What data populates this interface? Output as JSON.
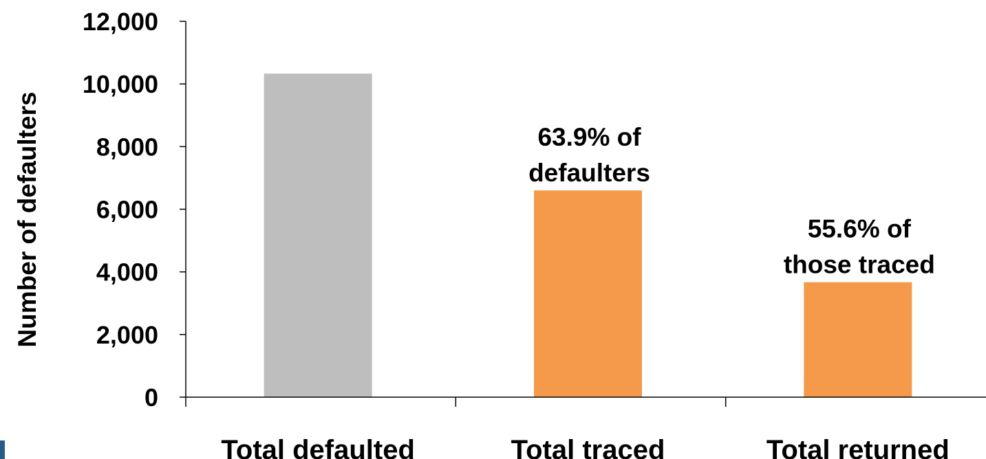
{
  "chart_data": {
    "type": "bar",
    "categories": [
      "Total defaulted",
      "Total traced",
      "Total returned"
    ],
    "values": [
      10330,
      6600,
      3670
    ],
    "bar_colors": [
      "#bebebe",
      "#f5994a",
      "#f5994a"
    ],
    "title": "",
    "xlabel": "",
    "ylabel": "Number of defaulters",
    "ylim": [
      0,
      12000
    ],
    "yticks": [
      0,
      2000,
      4000,
      6000,
      8000,
      10000,
      12000
    ],
    "ytick_labels": [
      "0",
      "2,000",
      "4,000",
      "6,000",
      "8,000",
      "10,000",
      "12,000"
    ],
    "grid": false,
    "annotations": [
      {
        "category": "Total traced",
        "lines": [
          "63.9% of",
          "defaulters"
        ]
      },
      {
        "category": "Total returned",
        "lines": [
          "55.6% of",
          "those traced"
        ]
      }
    ]
  }
}
